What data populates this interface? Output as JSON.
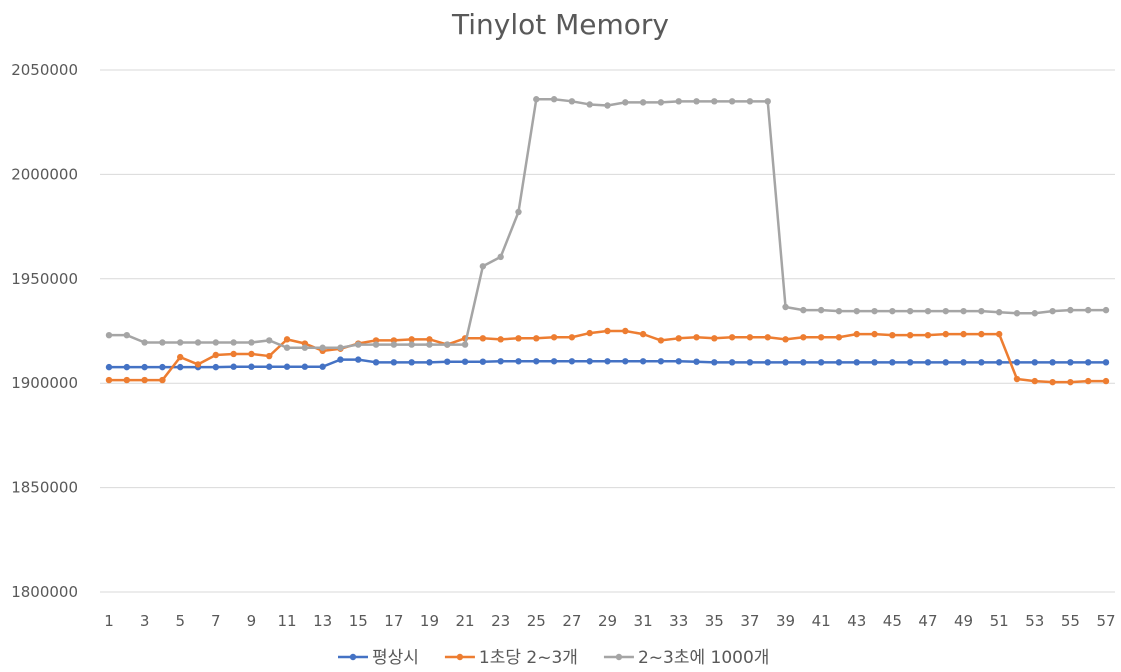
{
  "chart_data": {
    "type": "line",
    "title": "Tinylot Memory",
    "xlabel": "",
    "ylabel": "",
    "x": [
      1,
      2,
      3,
      4,
      5,
      6,
      7,
      8,
      9,
      10,
      11,
      12,
      13,
      14,
      15,
      16,
      17,
      18,
      19,
      20,
      21,
      22,
      23,
      24,
      25,
      26,
      27,
      28,
      29,
      30,
      31,
      32,
      33,
      34,
      35,
      36,
      37,
      38,
      39,
      40,
      41,
      42,
      43,
      44,
      45,
      46,
      47,
      48,
      49,
      50,
      51,
      52,
      53,
      54,
      55,
      56,
      57
    ],
    "x_tick_labels": [
      "1",
      "3",
      "5",
      "7",
      "9",
      "11",
      "13",
      "15",
      "17",
      "19",
      "21",
      "23",
      "25",
      "27",
      "29",
      "31",
      "33",
      "35",
      "37",
      "39",
      "41",
      "43",
      "45",
      "47",
      "49",
      "51",
      "53",
      "55",
      "57"
    ],
    "ylim": [
      1800000,
      2050000
    ],
    "y_ticks": [
      1800000,
      1850000,
      1900000,
      1950000,
      2000000,
      2050000
    ],
    "y_tick_labels": [
      "1800000",
      "1850000",
      "1900000",
      "1950000",
      "2000000",
      "2050000"
    ],
    "grid": true,
    "legend_position": "bottom",
    "series": [
      {
        "name": "평상시",
        "color": "#4472C4",
        "values": [
          1907700,
          1907700,
          1907700,
          1907700,
          1907700,
          1907700,
          1907700,
          1907900,
          1907900,
          1907900,
          1907900,
          1907900,
          1907900,
          1911300,
          1911300,
          1910000,
          1910000,
          1910000,
          1910000,
          1910300,
          1910300,
          1910300,
          1910500,
          1910500,
          1910500,
          1910500,
          1910500,
          1910500,
          1910500,
          1910500,
          1910500,
          1910500,
          1910500,
          1910300,
          1910000,
          1910000,
          1910000,
          1910000,
          1910000,
          1910000,
          1910000,
          1910000,
          1910000,
          1910000,
          1910000,
          1910000,
          1910000,
          1910000,
          1910000,
          1910000,
          1910000,
          1910000,
          1910000,
          1910000,
          1910000,
          1910000,
          1910000
        ]
      },
      {
        "name": "1초당 2~3개",
        "color": "#ED7D31",
        "values": [
          1901500,
          1901500,
          1901500,
          1901500,
          1912500,
          1909000,
          1913500,
          1914000,
          1914000,
          1913000,
          1921000,
          1919000,
          1915500,
          1916500,
          1919000,
          1920500,
          1920500,
          1921000,
          1921000,
          1918500,
          1921500,
          1921500,
          1921000,
          1921500,
          1921500,
          1922000,
          1922000,
          1924000,
          1925000,
          1925000,
          1923500,
          1920500,
          1921500,
          1922000,
          1921500,
          1922000,
          1922000,
          1922000,
          1921000,
          1922000,
          1922000,
          1922000,
          1923500,
          1923500,
          1923000,
          1923000,
          1923000,
          1923500,
          1923500,
          1923500,
          1923500,
          1902000,
          1901000,
          1900500,
          1900500,
          1901000,
          1901000
        ]
      },
      {
        "name": "2~3초에 1000개",
        "color": "#A5A5A5",
        "values": [
          1923000,
          1923000,
          1919500,
          1919500,
          1919500,
          1919500,
          1919500,
          1919500,
          1919500,
          1920500,
          1917000,
          1917000,
          1917000,
          1917000,
          1918500,
          1918500,
          1918500,
          1918500,
          1918500,
          1918500,
          1918500,
          1956000,
          1960500,
          1982000,
          2036000,
          2036000,
          2035000,
          2033500,
          2033000,
          2034500,
          2034500,
          2034500,
          2035000,
          2035000,
          2035000,
          2035000,
          2035000,
          2035000,
          1936500,
          1935000,
          1935000,
          1934500,
          1934500,
          1934500,
          1934500,
          1934500,
          1934500,
          1934500,
          1934500,
          1934500,
          1934000,
          1933500,
          1933500,
          1934500,
          1935000,
          1935000,
          1935000
        ]
      }
    ]
  }
}
